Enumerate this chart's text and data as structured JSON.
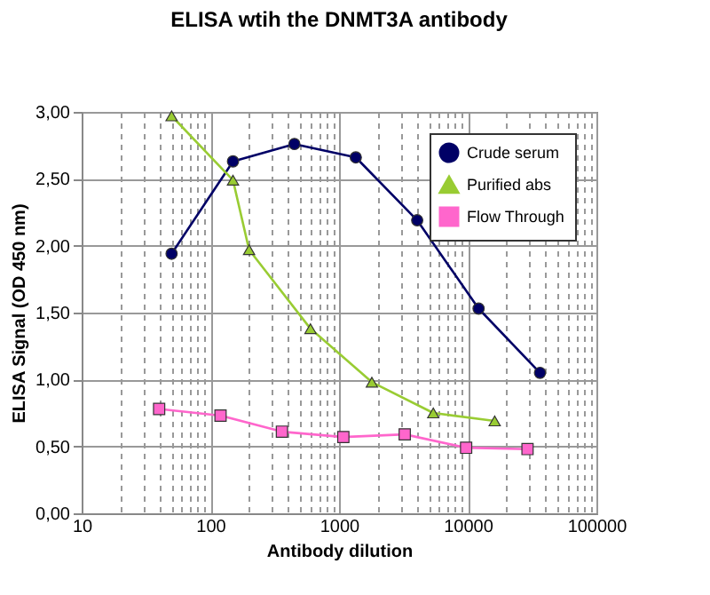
{
  "chart_data": {
    "type": "line",
    "title": "ELISA wtih the DNMT3A antibody",
    "xlabel": "Antibody dilution",
    "ylabel": "ELISA Signal (OD 450 nm)",
    "log": "x",
    "grid": true,
    "legend": "top right",
    "xlim": [
      10,
      100000
    ],
    "xticks": [
      10,
      {
        "value": 20,
        "label": null
      },
      {
        "value": 30,
        "label": null
      },
      {
        "value": 40,
        "label": null
      },
      {
        "value": 50,
        "label": null
      },
      {
        "value": 60,
        "label": null
      },
      {
        "value": 70,
        "label": null
      },
      {
        "value": 80,
        "label": null
      },
      {
        "value": 90,
        "label": null
      },
      100,
      {
        "value": 200,
        "label": null
      },
      {
        "value": 300,
        "label": null
      },
      {
        "value": 400,
        "label": null
      },
      {
        "value": 500,
        "label": null
      },
      {
        "value": 600,
        "label": null
      },
      {
        "value": 700,
        "label": null
      },
      {
        "value": 800,
        "label": null
      },
      {
        "value": 900,
        "label": null
      },
      1000,
      {
        "value": 2000,
        "label": null
      },
      {
        "value": 3000,
        "label": null
      },
      {
        "value": 4000,
        "label": null
      },
      {
        "value": 5000,
        "label": null
      },
      {
        "value": 6000,
        "label": null
      },
      {
        "value": 7000,
        "label": null
      },
      {
        "value": 8000,
        "label": null
      },
      {
        "value": 9000,
        "label": null
      },
      10000,
      {
        "value": 20000,
        "label": null
      },
      {
        "value": 30000,
        "label": null
      },
      {
        "value": 40000,
        "label": null
      },
      {
        "value": 50000,
        "label": null
      },
      {
        "value": 60000,
        "label": null
      },
      {
        "value": 70000,
        "label": null
      },
      {
        "value": 80000,
        "label": null
      },
      {
        "value": 90000,
        "label": null
      },
      100000
    ],
    "ylim": [
      0,
      3
    ],
    "yticks": [
      {
        "value": 0,
        "label": "0,00"
      },
      {
        "value": 0.5,
        "label": "0,50"
      },
      {
        "value": 1,
        "label": "1,00"
      },
      {
        "value": 1.5,
        "label": "1,50"
      },
      {
        "value": 2,
        "label": "2,00"
      },
      {
        "value": 2.5,
        "label": "2,50"
      },
      {
        "value": 3,
        "label": "3,00"
      }
    ],
    "series": [
      {
        "name": "Crude serum",
        "color": "#000066",
        "marker": "circle",
        "x": [
          50,
          150,
          450,
          1350,
          4050,
          12150,
          36450
        ],
        "values": [
          1.94,
          2.63,
          2.76,
          2.66,
          2.19,
          1.53,
          1.05
        ]
      },
      {
        "name": "Purified abs",
        "color": "#99cc33",
        "marker": "triangle",
        "x": [
          50,
          150,
          200,
          600,
          1800,
          5400,
          16200
        ],
        "values": [
          2.97,
          2.49,
          1.97,
          1.38,
          0.98,
          0.75,
          0.69
        ]
      },
      {
        "name": "Flow Through",
        "color": "#ff66cc",
        "marker": "square",
        "x": [
          40,
          120,
          360,
          1080,
          3240,
          9720,
          29160
        ],
        "values": [
          0.78,
          0.73,
          0.61,
          0.57,
          0.59,
          0.49,
          0.48
        ]
      }
    ]
  }
}
